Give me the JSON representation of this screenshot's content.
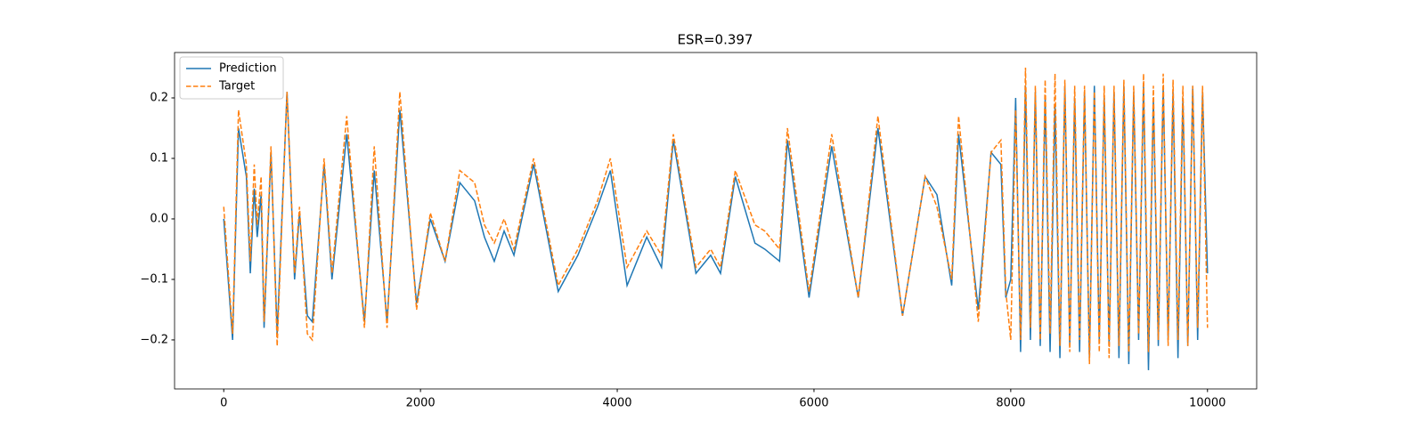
{
  "chart_data": {
    "type": "line",
    "title": "ESR=0.397",
    "x": [
      0,
      90,
      150,
      230,
      270,
      310,
      340,
      380,
      410,
      480,
      543,
      643,
      720,
      770,
      850,
      900,
      1020,
      1100,
      1250,
      1430,
      1530,
      1660,
      1790,
      1960,
      2100,
      2250,
      2400,
      2550,
      2650,
      2750,
      2850,
      2950,
      3150,
      3400,
      3600,
      3800,
      3930,
      4100,
      4300,
      4450,
      4570,
      4800,
      4950,
      5050,
      5200,
      5400,
      5500,
      5650,
      5730,
      5950,
      6180,
      6450,
      6650,
      6900,
      7130,
      7250,
      7400,
      7470,
      7670,
      7800,
      7900,
      7950,
      8000,
      8050,
      8100,
      8150,
      8200,
      8250,
      8300,
      8350,
      8400,
      8450,
      8500,
      8550,
      8600,
      8650,
      8700,
      8750,
      8800,
      8850,
      8900,
      8950,
      9000,
      9050,
      9100,
      9150,
      9200,
      9250,
      9300,
      9350,
      9400,
      9450,
      9500,
      9550,
      9600,
      9650,
      9700,
      9750,
      9800,
      9850,
      9900,
      9950,
      10000
    ],
    "series": [
      {
        "name": "Prediction",
        "color": "#1f77b4",
        "dash": false,
        "values": [
          0,
          -0.2,
          0.15,
          0.07,
          -0.09,
          0.05,
          -0.03,
          0.04,
          -0.18,
          0.11,
          -0.19,
          0.21,
          -0.1,
          0.01,
          -0.16,
          -0.17,
          0.09,
          -0.1,
          0.14,
          -0.17,
          0.08,
          -0.17,
          0.18,
          -0.14,
          0.0,
          -0.07,
          0.06,
          0.03,
          -0.03,
          -0.07,
          -0.02,
          -0.06,
          0.09,
          -0.12,
          -0.06,
          0.02,
          0.08,
          -0.11,
          -0.03,
          -0.08,
          0.13,
          -0.09,
          -0.06,
          -0.09,
          0.07,
          -0.04,
          -0.05,
          -0.07,
          0.13,
          -0.13,
          0.12,
          -0.13,
          0.15,
          -0.16,
          0.07,
          0.04,
          -0.11,
          0.14,
          -0.15,
          0.11,
          0.09,
          -0.13,
          -0.1,
          0.2,
          -0.22,
          0.22,
          -0.2,
          0.21,
          -0.21,
          0.2,
          -0.22,
          0.19,
          -0.23,
          0.22,
          -0.21,
          0.2,
          -0.22,
          0.21,
          -0.23,
          0.22,
          -0.2,
          0.2,
          -0.21,
          0.21,
          -0.23,
          0.22,
          -0.24,
          0.21,
          -0.2,
          0.22,
          -0.25,
          0.2,
          -0.21,
          0.22,
          -0.2,
          0.21,
          -0.23,
          0.2,
          -0.21,
          0.22,
          -0.2,
          0.21,
          -0.09
        ]
      },
      {
        "name": "Target",
        "color": "#ff7f0e",
        "dash": true,
        "values": [
          0.02,
          -0.19,
          0.18,
          0.09,
          -0.07,
          0.09,
          -0.01,
          0.07,
          -0.17,
          0.12,
          -0.21,
          0.21,
          -0.09,
          0.02,
          -0.19,
          -0.2,
          0.1,
          -0.09,
          0.17,
          -0.18,
          0.12,
          -0.18,
          0.21,
          -0.15,
          0.01,
          -0.07,
          0.08,
          0.06,
          -0.01,
          -0.04,
          0.0,
          -0.05,
          0.1,
          -0.11,
          -0.05,
          0.03,
          0.1,
          -0.08,
          -0.02,
          -0.06,
          0.14,
          -0.08,
          -0.05,
          -0.08,
          0.08,
          -0.01,
          -0.02,
          -0.05,
          0.15,
          -0.12,
          0.14,
          -0.13,
          0.17,
          -0.16,
          0.07,
          0.02,
          -0.1,
          0.17,
          -0.17,
          0.11,
          0.13,
          -0.12,
          -0.2,
          0.18,
          -0.2,
          0.25,
          -0.18,
          0.22,
          -0.2,
          0.23,
          -0.19,
          0.24,
          -0.21,
          0.23,
          -0.22,
          0.22,
          -0.2,
          0.22,
          -0.24,
          0.21,
          -0.22,
          0.22,
          -0.23,
          0.22,
          -0.21,
          0.23,
          -0.22,
          0.22,
          -0.19,
          0.24,
          -0.22,
          0.22,
          -0.2,
          0.24,
          -0.21,
          0.23,
          -0.2,
          0.22,
          -0.21,
          0.22,
          -0.18,
          0.22,
          -0.18
        ]
      }
    ],
    "xlim": [
      -500,
      10500
    ],
    "ylim": [
      -0.281,
      0.275
    ],
    "xticks": [
      0,
      2000,
      4000,
      6000,
      8000,
      10000
    ],
    "yticks": [
      {
        "value": -0.2,
        "label": "−0.2"
      },
      {
        "value": -0.1,
        "label": "−0.1"
      },
      {
        "value": 0.0,
        "label": "0.0"
      },
      0.1,
      0.2
    ],
    "grid": false,
    "legend": "upper left"
  }
}
